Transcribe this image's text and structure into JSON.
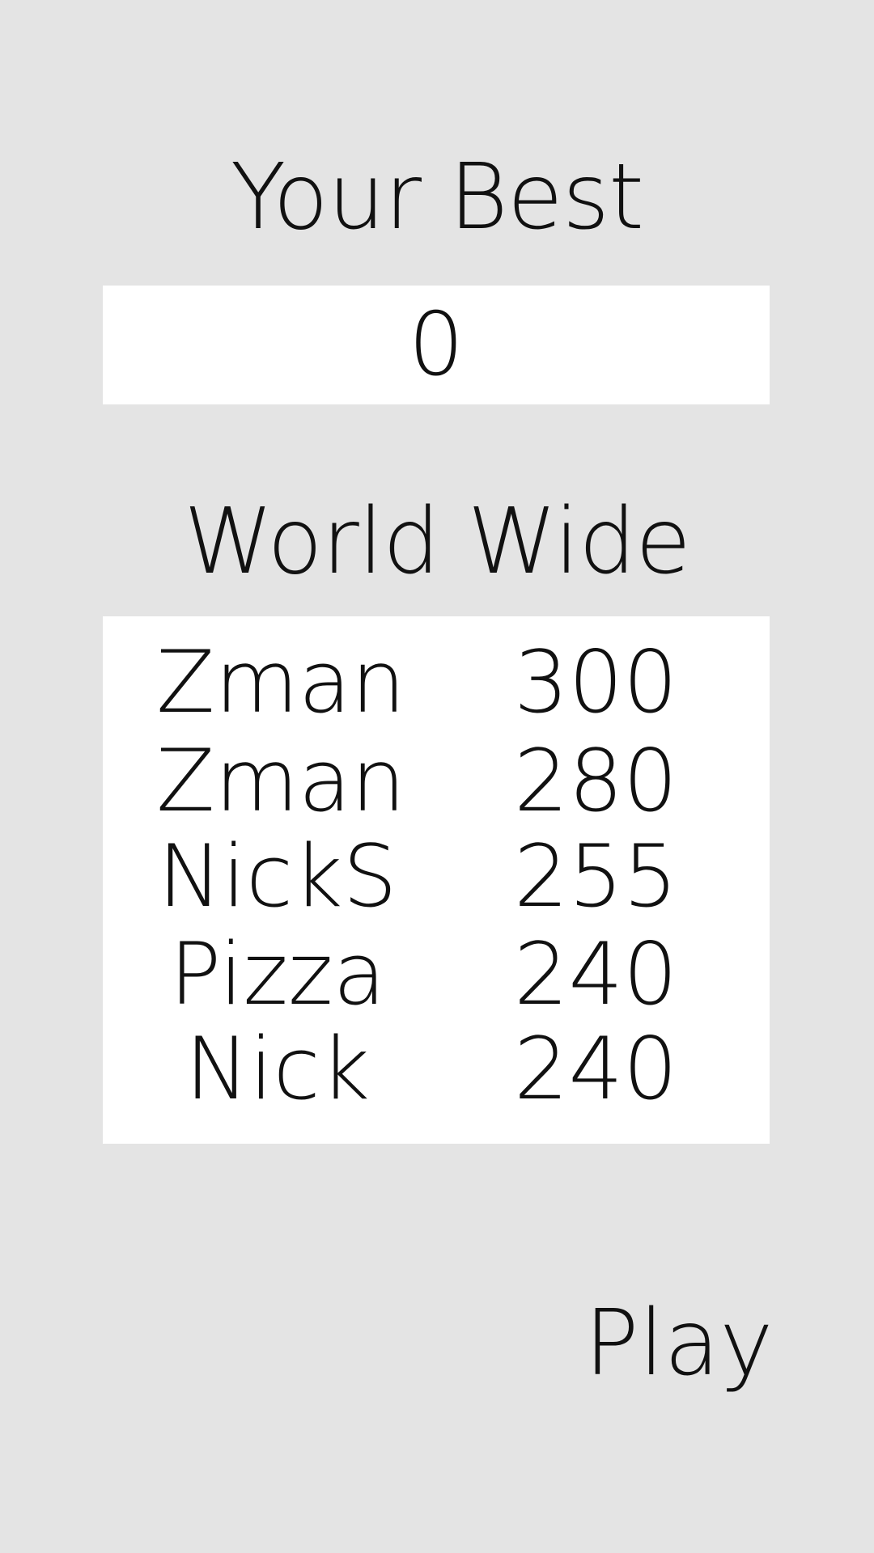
{
  "your_best": {
    "title": "Your Best",
    "score": "0"
  },
  "world_wide": {
    "title": "World Wide",
    "entries": [
      {
        "name": "Zman",
        "score": "300"
      },
      {
        "name": "Zman",
        "score": "280"
      },
      {
        "name": "NickS",
        "score": "255"
      },
      {
        "name": "Pizza",
        "score": "240"
      },
      {
        "name": "Nick",
        "score": "240"
      }
    ]
  },
  "play_label": "Play",
  "colors": {
    "background": "#e4e4e4",
    "panel": "#ffffff",
    "text": "#111111"
  }
}
